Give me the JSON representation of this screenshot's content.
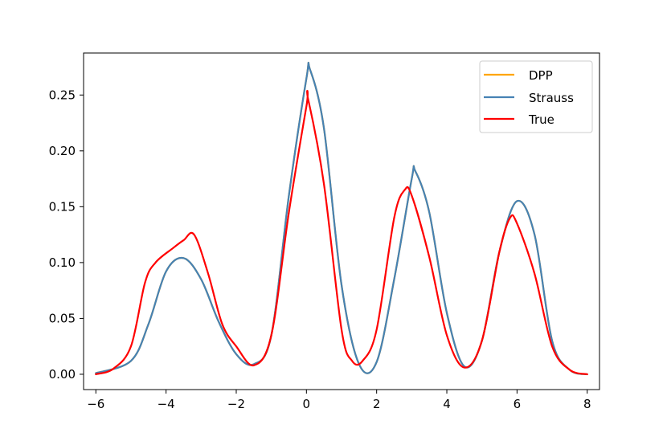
{
  "chart_data": {
    "type": "line",
    "title": "",
    "xlabel": "",
    "ylabel": "",
    "xlim": [
      -6.35,
      8.35
    ],
    "ylim": [
      -0.0137,
      0.2876
    ],
    "x_ticks": [
      -6,
      -4,
      -2,
      0,
      2,
      4,
      6,
      8
    ],
    "x_tick_labels": [
      "−6",
      "−4",
      "−2",
      "0",
      "2",
      "4",
      "6",
      "8"
    ],
    "y_ticks": [
      0.0,
      0.05,
      0.1,
      0.15,
      0.2,
      0.25
    ],
    "y_tick_labels": [
      "0.00",
      "0.05",
      "0.10",
      "0.15",
      "0.20",
      "0.25"
    ],
    "grid": false,
    "legend_position": "top-right",
    "series": [
      {
        "name": "DPP",
        "color": "#FFA500",
        "visible_line": false,
        "x": [
          -6,
          -5,
          -4.5,
          -4,
          -3.5,
          -3,
          -2.5,
          -2,
          -1.5,
          -1,
          -0.5,
          0,
          0.1,
          0.5,
          1,
          1.5,
          2,
          2.5,
          3,
          3.1,
          3.5,
          4,
          4.5,
          5,
          5.5,
          6,
          6.5,
          7,
          7.5,
          8
        ],
        "y": [
          0.001,
          0.012,
          0.045,
          0.092,
          0.104,
          0.085,
          0.047,
          0.018,
          0.009,
          0.035,
          0.16,
          0.265,
          0.273,
          0.22,
          0.08,
          0.009,
          0.011,
          0.085,
          0.175,
          0.182,
          0.145,
          0.055,
          0.007,
          0.03,
          0.11,
          0.155,
          0.125,
          0.03,
          0.004,
          0.0
        ]
      },
      {
        "name": "Strauss",
        "color": "#4682B4",
        "x": [
          -6,
          -5,
          -4.5,
          -4,
          -3.5,
          -3,
          -2.5,
          -2,
          -1.5,
          -1,
          -0.5,
          0,
          0.1,
          0.5,
          1,
          1.5,
          2,
          2.5,
          3,
          3.1,
          3.5,
          4,
          4.5,
          5,
          5.5,
          6,
          6.5,
          7,
          7.5,
          8
        ],
        "y": [
          0.001,
          0.012,
          0.045,
          0.092,
          0.104,
          0.085,
          0.047,
          0.018,
          0.009,
          0.035,
          0.16,
          0.265,
          0.273,
          0.22,
          0.08,
          0.009,
          0.011,
          0.085,
          0.175,
          0.182,
          0.145,
          0.055,
          0.007,
          0.03,
          0.11,
          0.155,
          0.125,
          0.03,
          0.004,
          0.0
        ]
      },
      {
        "name": "True",
        "color": "#FF0000",
        "x": [
          -6,
          -5.5,
          -5,
          -4.6,
          -4.3,
          -3.8,
          -3.5,
          -3.2,
          -2.8,
          -2.4,
          -2,
          -1.5,
          -1,
          -0.5,
          0,
          0.05,
          0.5,
          1,
          1.3,
          1.6,
          2,
          2.5,
          2.8,
          3,
          3.5,
          4,
          4.5,
          5,
          5.5,
          5.8,
          6,
          6.5,
          7,
          7.5,
          8
        ],
        "y": [
          0.0,
          0.005,
          0.025,
          0.082,
          0.1,
          0.113,
          0.12,
          0.125,
          0.09,
          0.045,
          0.025,
          0.008,
          0.035,
          0.145,
          0.24,
          0.246,
          0.17,
          0.04,
          0.012,
          0.012,
          0.04,
          0.14,
          0.165,
          0.16,
          0.105,
          0.035,
          0.006,
          0.03,
          0.11,
          0.14,
          0.135,
          0.09,
          0.025,
          0.004,
          0.0
        ]
      }
    ]
  }
}
